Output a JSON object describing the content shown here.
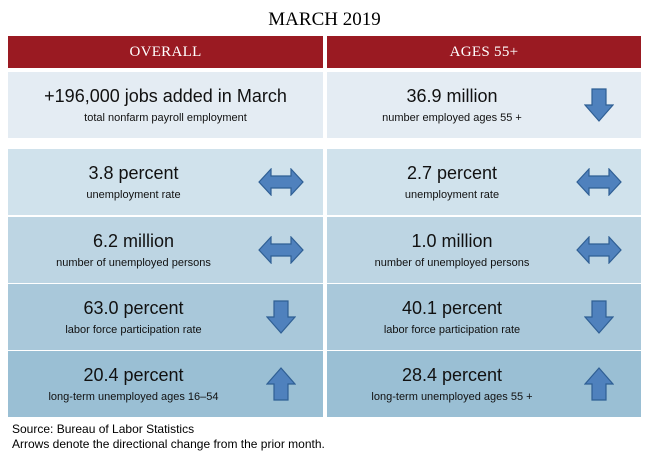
{
  "title": "MARCH 2019",
  "headers": {
    "left": "OVERALL",
    "right": "AGES 55+"
  },
  "rows": [
    {
      "left": {
        "value": "+196,000 jobs added in March",
        "label": "total nonfarm payroll employment",
        "arrow": "none"
      },
      "right": {
        "value": "36.9 million",
        "label": "number employed ages 55 +",
        "arrow": "down"
      }
    },
    {
      "left": {
        "value": "3.8 percent",
        "label": "unemployment rate",
        "arrow": "both"
      },
      "right": {
        "value": "2.7 percent",
        "label": "unemployment rate",
        "arrow": "both"
      }
    },
    {
      "left": {
        "value": "6.2 million",
        "label": "number of unemployed persons",
        "arrow": "both"
      },
      "right": {
        "value": "1.0 million",
        "label": "number of unemployed persons",
        "arrow": "both"
      }
    },
    {
      "left": {
        "value": "63.0 percent",
        "label": "labor force participation rate",
        "arrow": "down"
      },
      "right": {
        "value": "40.1 percent",
        "label": "labor force participation rate",
        "arrow": "down"
      }
    },
    {
      "left": {
        "value": "20.4 percent",
        "label": "long-term unemployed ages 16–54",
        "arrow": "up"
      },
      "right": {
        "value": "28.4 percent",
        "label": "long-term unemployed ages 55 +",
        "arrow": "up"
      }
    }
  ],
  "footer": {
    "source": "Source: Bureau of Labor Statistics",
    "note": "Arrows denote the directional change from the prior month."
  },
  "colors": {
    "header": "#9a1a22",
    "row_fills": [
      "#e4ecf3",
      "#d0e2ec",
      "#bdd5e3",
      "#a9c8da",
      "#9abfd4"
    ],
    "arrow_fill": "#4f81bd",
    "arrow_stroke": "#2f5f94"
  }
}
